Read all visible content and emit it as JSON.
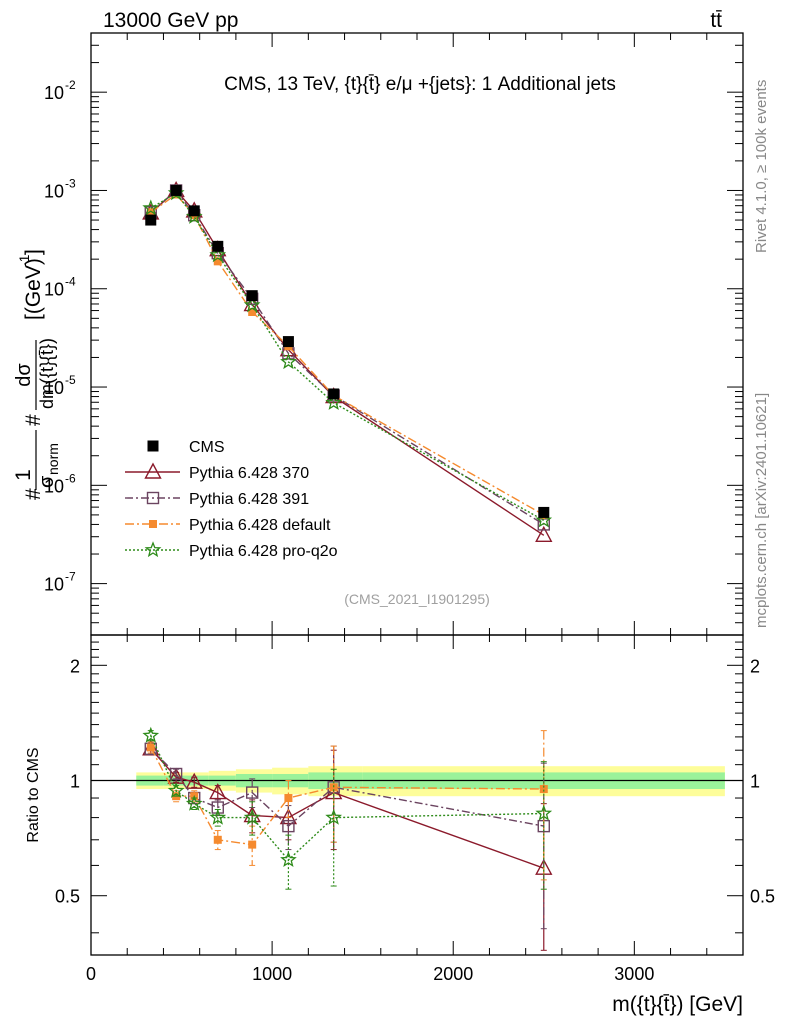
{
  "header": {
    "left": "13000 GeV pp",
    "right": "tt̄"
  },
  "side_labels": {
    "rivet": "Rivet 4.1.0, ≥ 100k events",
    "mcplots": "mcplots.cern.ch [arXiv:2401.10621]"
  },
  "chart_data": {
    "type": "line",
    "title": "CMS, 13 TeV, {t}{t̄} e/μ +{jets}: 1 Additional jets",
    "watermark": "(CMS_2021_I1901295)",
    "xlabel": "m({t}{t̄}) [GeV]",
    "ylabel": "#1/σ_norm #dσ/dm({t}{t̄}) [(GeV)^-1]",
    "ylabel_parts": {
      "hash": "#",
      "one": "1",
      "sigma": "σ",
      "norm": "norm",
      "dsigma": "dσ",
      "dm": "dm({t}{t̄})",
      "unit": "[(GeV)",
      "unit_exp": "-1",
      "unit_close": "]"
    },
    "ratio_ylabel": "Ratio to CMS",
    "xlim": [
      0,
      3600
    ],
    "ylim_main": [
      3e-08,
      0.04
    ],
    "ylim_ratio": [
      0.35,
      2.4
    ],
    "x_ticks": [
      0,
      1000,
      2000,
      3000
    ],
    "x_tick_labels": [
      "0",
      "1000",
      "2000",
      "3000"
    ],
    "y_main_ticks": [
      {
        "base": "10",
        "exp": "-2"
      },
      {
        "base": "10",
        "exp": "-3"
      },
      {
        "base": "10",
        "exp": "-4"
      },
      {
        "base": "10",
        "exp": "-5"
      },
      {
        "base": "10",
        "exp": "-6"
      },
      {
        "base": "10",
        "exp": "-7"
      }
    ],
    "y_main_tick_values": [
      0.01,
      0.001,
      0.0001,
      1e-05,
      1e-06,
      1e-07
    ],
    "y_ratio_ticks": [
      0.5,
      1,
      2
    ],
    "y_ratio_tick_labels": [
      "0.5",
      "1",
      "2"
    ],
    "x": [
      330,
      470,
      570,
      700,
      890,
      1090,
      1340,
      2500
    ],
    "data": {
      "name": "CMS",
      "values": [
        0.0005,
        0.001,
        0.00062,
        0.00027,
        8.5e-05,
        2.9e-05,
        8.5e-06,
        5.3e-07
      ],
      "bins": [
        [
          250,
          400
        ],
        [
          400,
          500
        ],
        [
          500,
          650
        ],
        [
          650,
          800
        ],
        [
          800,
          1000
        ],
        [
          1000,
          1200
        ],
        [
          1200,
          1500
        ],
        [
          1500,
          3500
        ]
      ],
      "band_inner": [
        0.03,
        0.03,
        0.03,
        0.03,
        0.04,
        0.04,
        0.05,
        0.05
      ],
      "band_outer": [
        0.05,
        0.05,
        0.05,
        0.06,
        0.07,
        0.08,
        0.09,
        0.09
      ]
    },
    "series": [
      {
        "name": "Pythia 6.428 370",
        "color": "#8b1a2b",
        "marker": "triangle",
        "dash": "",
        "values": [
          0.00059,
          0.001,
          0.00062,
          0.00025,
          6.9e-05,
          2.4e-05,
          8e-06,
          3.1e-07
        ],
        "ratio": [
          1.21,
          1.02,
          0.99,
          0.93,
          0.81,
          0.8,
          0.93,
          0.59
        ],
        "ratio_err": [
          0.04,
          0.03,
          0.03,
          0.04,
          0.08,
          0.1,
          0.27,
          0.28
        ]
      },
      {
        "name": "Pythia 6.428 391",
        "color": "#6b4460",
        "marker": "square-open",
        "dash": "8,3,2,3",
        "values": [
          0.0006,
          0.001,
          0.00056,
          0.00023,
          7.9e-05,
          2.2e-05,
          8.2e-06,
          4e-07
        ],
        "ratio": [
          1.21,
          1.04,
          0.9,
          0.85,
          0.93,
          0.76,
          0.96,
          0.76
        ],
        "ratio_err": [
          0.04,
          0.03,
          0.03,
          0.04,
          0.08,
          0.1,
          0.27,
          0.35
        ]
      },
      {
        "name": "Pythia 6.428 default",
        "color": "#f58a2e",
        "marker": "square-filled",
        "dash": "9,3,2,3",
        "values": [
          0.0006,
          0.00091,
          0.00056,
          0.00019,
          5.8e-05,
          2.6e-05,
          8.2e-06,
          5e-07
        ],
        "ratio": [
          1.22,
          0.91,
          0.91,
          0.7,
          0.68,
          0.9,
          0.96,
          0.95
        ],
        "ratio_err": [
          0.04,
          0.03,
          0.03,
          0.04,
          0.08,
          0.1,
          0.27,
          0.4
        ]
      },
      {
        "name": "Pythia 6.428 pro-q2o",
        "color": "#2e8b1a",
        "marker": "star",
        "dash": "2,2",
        "values": [
          0.00066,
          0.00094,
          0.00054,
          0.00022,
          6.8e-05,
          1.8e-05,
          6.9e-06,
          4.4e-07
        ],
        "ratio": [
          1.31,
          0.94,
          0.87,
          0.8,
          0.8,
          0.62,
          0.8,
          0.82
        ],
        "ratio_err": [
          0.04,
          0.03,
          0.03,
          0.04,
          0.08,
          0.1,
          0.27,
          0.3
        ]
      }
    ]
  }
}
